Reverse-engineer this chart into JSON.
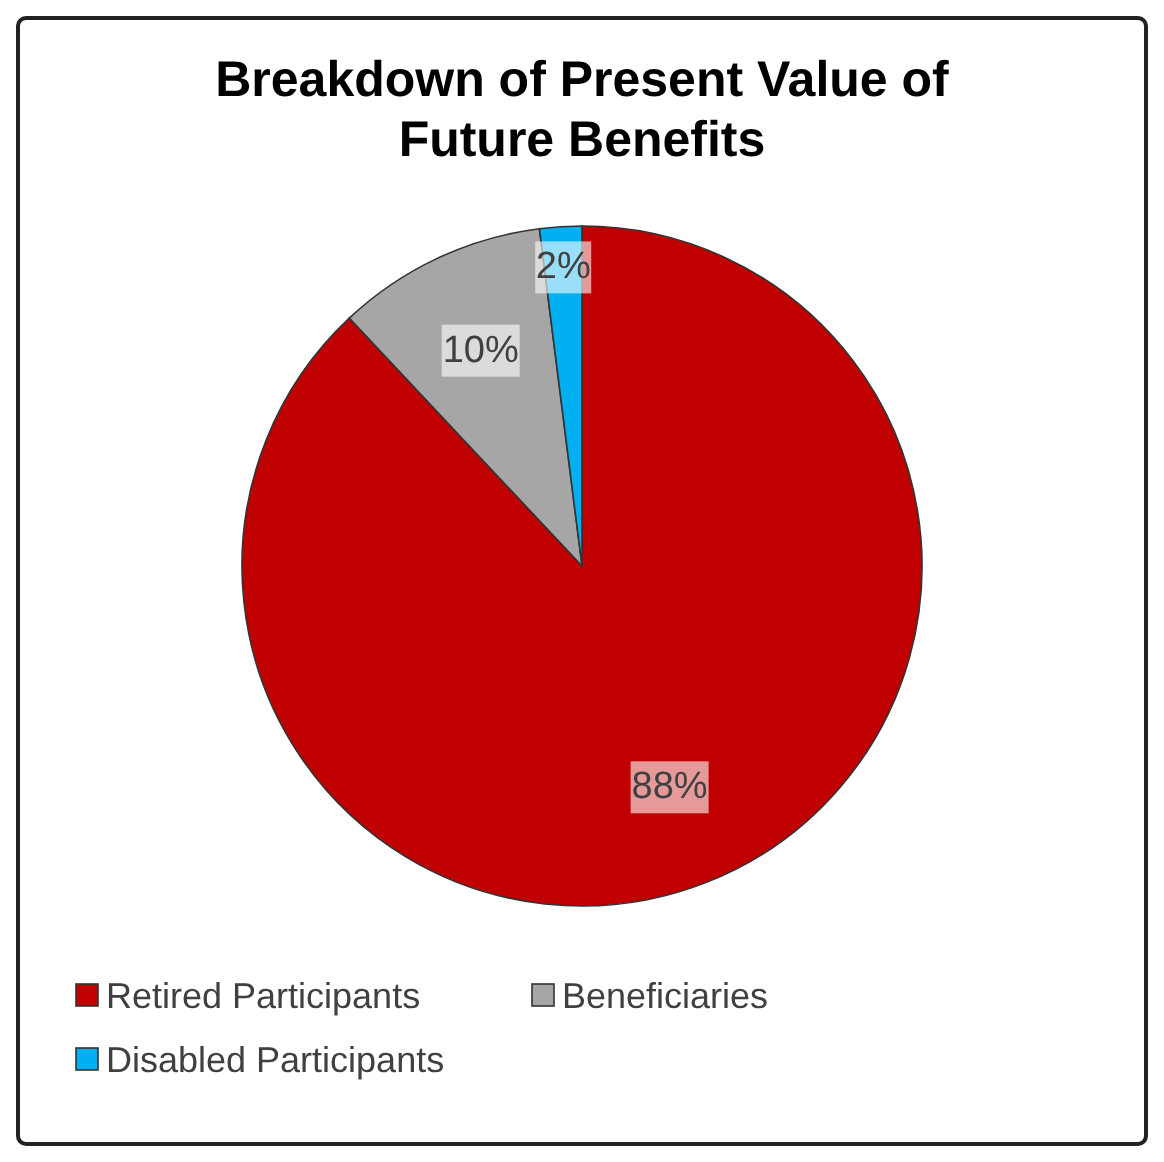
{
  "chart_data": {
    "type": "pie",
    "title": "Breakdown of Present Value of Future Benefits",
    "categories": [
      "Retired Participants",
      "Beneficiaries",
      "Disabled Participants"
    ],
    "values": [
      88,
      10,
      2
    ],
    "colors": [
      "#c00000",
      "#a6a6a6",
      "#00b0f0"
    ],
    "value_labels": [
      "88%",
      "10%",
      "2%"
    ],
    "legend": "bottom"
  }
}
